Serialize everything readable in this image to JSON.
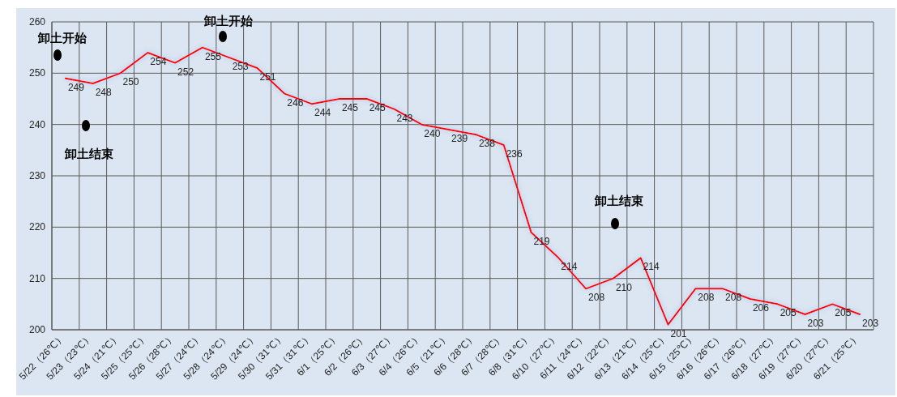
{
  "chart_data": {
    "type": "line",
    "categories": [
      "5/22（26℃）",
      "5/23（23℃）",
      "5/24（21℃）",
      "5/25（25℃）",
      "5/26（28℃）",
      "5/27（24℃）",
      "5/28（24℃）",
      "5/29（24℃）",
      "5/30（31℃）",
      "5/31（31℃）",
      "6/1（25℃）",
      "6/2（26℃）",
      "6/3（27℃）",
      "6/4（26℃）",
      "6/5（21℃）",
      "6/6（28℃）",
      "6/7（28℃）",
      "6/8（31℃）",
      "6/10（27℃）",
      "6/11（24℃）",
      "6/12（22℃）",
      "6/13（21℃）",
      "6/14（25℃）",
      "6/15（25℃）",
      "6/16（26℃）",
      "6/17（26℃）",
      "6/18（27℃）",
      "6/19（27℃）",
      "6/20（27℃）",
      "6/21（25℃）"
    ],
    "series": [
      {
        "color": "#ff0000",
        "values": [
          249,
          248,
          250,
          254,
          252,
          255,
          253,
          251,
          246,
          244,
          245,
          245,
          243,
          240,
          239,
          238,
          236,
          219,
          214,
          208,
          210,
          214,
          201,
          208,
          208,
          206,
          205,
          203,
          205,
          203
        ]
      }
    ],
    "ylim": [
      200,
      260
    ],
    "yticks": [
      200,
      210,
      220,
      230,
      240,
      250,
      260
    ],
    "grid": true,
    "data_labels": true,
    "marker": "none",
    "annotations": [
      "卸土开始",
      "卸土结束",
      "卸土开始",
      "卸土结束"
    ]
  }
}
